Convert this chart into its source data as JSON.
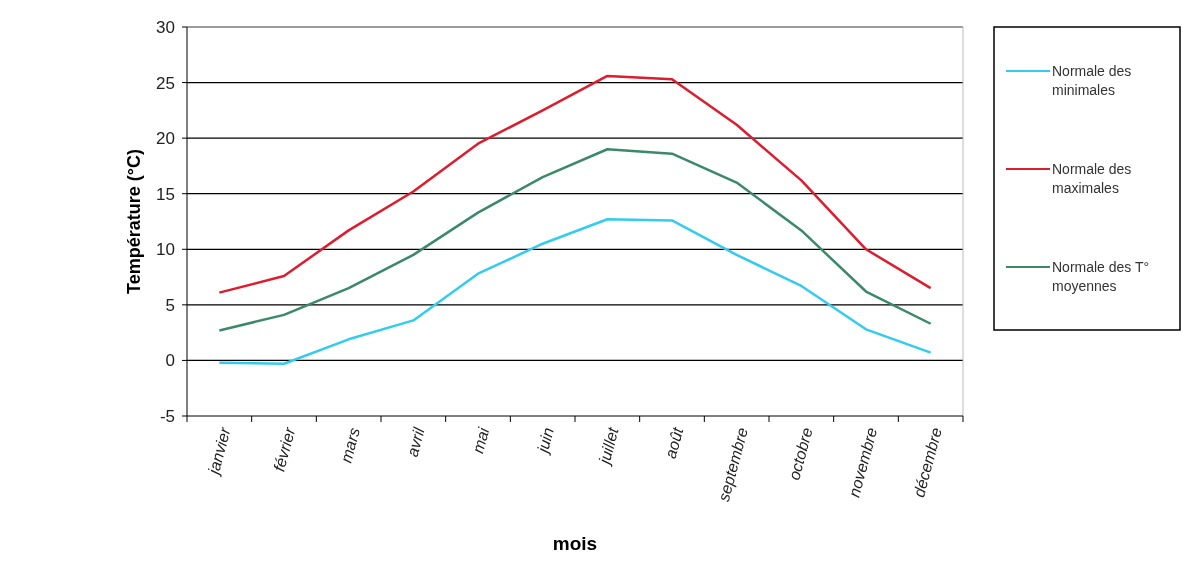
{
  "chart_data": {
    "type": "line",
    "xlabel": "mois",
    "ylabel": "Température (°C)",
    "categories": [
      "janvier",
      "février",
      "mars",
      "avril",
      "mai",
      "juin",
      "juillet",
      "août",
      "septembre",
      "octobre",
      "novembre",
      "décembre"
    ],
    "series": [
      {
        "name": "Normale des minimales",
        "color": "#33ccee",
        "values": [
          -0.2,
          -0.3,
          1.9,
          3.6,
          7.8,
          10.5,
          12.7,
          12.6,
          9.5,
          6.7,
          2.8,
          0.7
        ]
      },
      {
        "name": "Normale des maximales",
        "color": "#dd1c2e",
        "values": [
          6.1,
          7.6,
          11.7,
          15.2,
          19.5,
          22.5,
          25.6,
          25.3,
          21.2,
          16.2,
          10.0,
          6.5
        ]
      },
      {
        "name": "Normale des T° moyennes",
        "color": "#3a8a6a",
        "values": [
          2.7,
          4.1,
          6.5,
          9.5,
          13.3,
          16.5,
          19.0,
          18.6,
          16.0,
          11.7,
          6.2,
          3.3
        ]
      }
    ],
    "ylim": [
      -5,
      30
    ],
    "yticks": [
      -5,
      0,
      5,
      10,
      15,
      20,
      25,
      30
    ],
    "grid": "y",
    "legend": "right",
    "marker": "none",
    "line_style": "solid"
  }
}
